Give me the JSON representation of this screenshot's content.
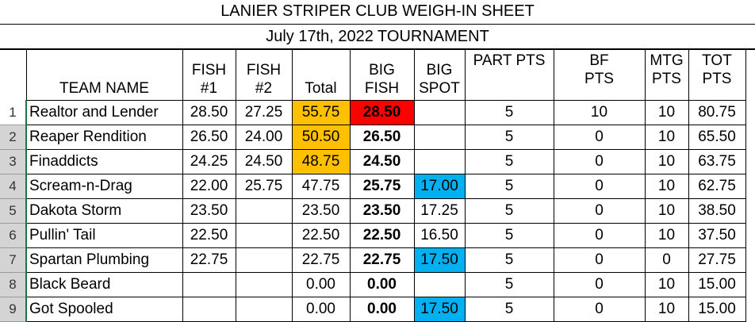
{
  "title": "LANIER STRIPER CLUB WEIGH-IN SHEET",
  "subtitle": "July 17th, 2022 TOURNAMENT",
  "headers": {
    "team": "TEAM NAME",
    "fish1_a": "FISH",
    "fish1_b": "#1",
    "fish2_a": "FISH",
    "fish2_b": "#2",
    "total": "Total",
    "bigfish_a": "BIG",
    "bigfish_b": "FISH",
    "bigspot_a": "BIG",
    "bigspot_b": "SPOT",
    "part": "PART PTS",
    "bf_a": "BF",
    "bf_b": "PTS",
    "mtg_a": "MTG",
    "mtg_b": "PTS",
    "tot_a": "TOT",
    "tot_b": "PTS"
  },
  "colors": {
    "total_highlight": "#ffc000",
    "bigfish_highlight": "#ff0000",
    "bigspot_highlight": "#00b0f0"
  },
  "rows": [
    {
      "n": "1",
      "team": "Realtor and Lender",
      "f1": "28.50",
      "f2": "27.25",
      "total": "55.75",
      "bigfish": "28.50",
      "bigspot": "",
      "part": "5",
      "bf": "10",
      "mtg": "10",
      "tot": "80.75"
    },
    {
      "n": "2",
      "team": "Reaper Rendition",
      "f1": "26.50",
      "f2": "24.00",
      "total": "50.50",
      "bigfish": "26.50",
      "bigspot": "",
      "part": "5",
      "bf": "0",
      "mtg": "10",
      "tot": "65.50"
    },
    {
      "n": "3",
      "team": "Finaddicts",
      "f1": "24.25",
      "f2": "24.50",
      "total": "48.75",
      "bigfish": "24.50",
      "bigspot": "",
      "part": "5",
      "bf": "0",
      "mtg": "10",
      "tot": "63.75"
    },
    {
      "n": "4",
      "team": "Scream-n-Drag",
      "f1": "22.00",
      "f2": "25.75",
      "total": "47.75",
      "bigfish": "25.75",
      "bigspot": "17.00",
      "part": "5",
      "bf": "0",
      "mtg": "10",
      "tot": "62.75"
    },
    {
      "n": "5",
      "team": "Dakota Storm",
      "f1": "23.50",
      "f2": "",
      "total": "23.50",
      "bigfish": "23.50",
      "bigspot": "17.25",
      "part": "5",
      "bf": "0",
      "mtg": "10",
      "tot": "38.50"
    },
    {
      "n": "6",
      "team": "Pullin' Tail",
      "f1": "22.50",
      "f2": "",
      "total": "22.50",
      "bigfish": "22.50",
      "bigspot": "16.50",
      "part": "5",
      "bf": "0",
      "mtg": "10",
      "tot": "37.50"
    },
    {
      "n": "7",
      "team": "Spartan Plumbing",
      "f1": "22.75",
      "f2": "",
      "total": "22.75",
      "bigfish": "22.75",
      "bigspot": "17.50",
      "part": "5",
      "bf": "0",
      "mtg": "0",
      "tot": "27.75"
    },
    {
      "n": "8",
      "team": "Black Beard",
      "f1": "",
      "f2": "",
      "total": "0.00",
      "bigfish": "0.00",
      "bigspot": "",
      "part": "5",
      "bf": "0",
      "mtg": "10",
      "tot": "15.00"
    },
    {
      "n": "9",
      "team": "Got Spooled",
      "f1": "",
      "f2": "",
      "total": "0.00",
      "bigfish": "0.00",
      "bigspot": "17.50",
      "part": "5",
      "bf": "0",
      "mtg": "10",
      "tot": "15.00"
    }
  ]
}
